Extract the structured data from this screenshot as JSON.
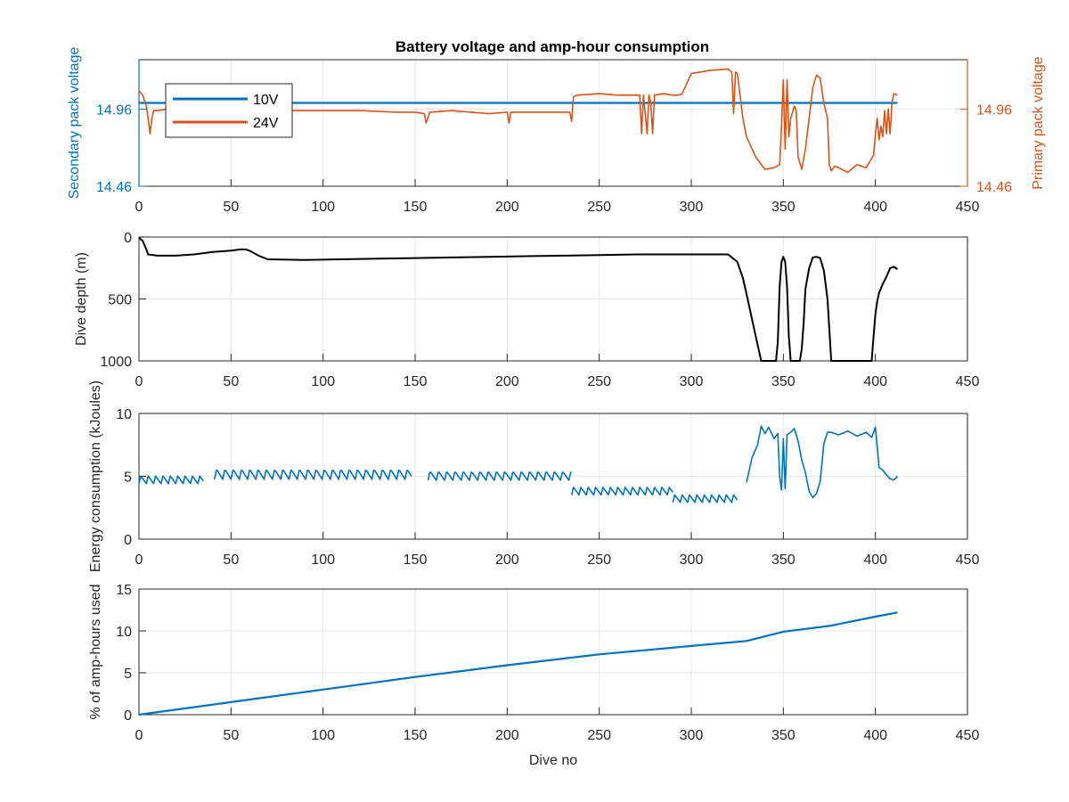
{
  "figure": {
    "title": "Battery voltage and amp-hour consumption"
  },
  "colors": {
    "blue": "#0072BD",
    "orange": "#D95319",
    "black": "#000000",
    "grid": "#e6e6e6"
  },
  "chart_data": [
    {
      "type": "line",
      "title": "Battery voltage and amp-hour consumption",
      "xlabel": "",
      "ylabel_left": "Secondary pack voltage",
      "ylabel_right": "Primary pack voltage",
      "xlim": [
        0,
        450
      ],
      "xticks": [
        "0",
        "50",
        "100",
        "150",
        "200",
        "250",
        "300",
        "350",
        "400",
        "450"
      ],
      "ylim_left": [
        14.46,
        15.28
      ],
      "ylim_right": [
        14.46,
        15.28
      ],
      "yticks_left": [
        "14.46",
        "14.96"
      ],
      "yticks_right": [
        "14.46",
        "14.96"
      ],
      "grid": true,
      "legend": {
        "position": "top-left",
        "entries": [
          "10V",
          "24V"
        ]
      },
      "series": [
        {
          "name": "10V",
          "axis": "left",
          "color": "#0072BD",
          "x": [
            0,
            412
          ],
          "y": [
            15.0,
            15.0
          ]
        },
        {
          "name": "24V",
          "axis": "right",
          "color": "#D95319",
          "x": [
            0,
            2,
            4,
            5,
            6,
            7,
            8,
            10,
            15,
            20,
            30,
            40,
            50,
            60,
            70,
            80,
            100,
            120,
            140,
            150,
            155,
            156,
            158,
            170,
            190,
            200,
            201,
            202,
            203,
            210,
            220,
            230,
            234,
            235,
            236,
            238,
            250,
            260,
            270,
            272,
            273,
            274,
            276,
            277,
            278,
            279,
            280,
            285,
            290,
            293,
            295,
            300,
            310,
            320,
            322,
            323,
            324,
            325,
            326,
            328,
            330,
            335,
            340,
            345,
            348,
            349,
            350,
            351,
            352,
            353,
            354,
            356,
            357,
            358,
            360,
            362,
            364,
            366,
            368,
            370,
            372,
            374,
            375,
            376,
            378,
            380,
            385,
            390,
            395,
            399,
            400,
            401,
            402,
            403,
            404,
            405,
            406,
            407,
            408,
            409,
            410,
            412
          ],
          "y": [
            15.08,
            15.05,
            14.98,
            14.9,
            14.8,
            14.9,
            14.95,
            14.95,
            14.96,
            14.95,
            14.95,
            14.95,
            14.95,
            14.94,
            14.95,
            14.95,
            14.95,
            14.95,
            14.94,
            14.94,
            14.93,
            14.87,
            14.94,
            14.95,
            14.93,
            14.94,
            14.87,
            14.94,
            14.94,
            14.94,
            14.94,
            14.94,
            14.94,
            14.88,
            15.04,
            15.05,
            15.06,
            15.05,
            15.05,
            15.05,
            14.8,
            15.05,
            14.8,
            15.05,
            15.0,
            14.8,
            15.05,
            15.06,
            15.05,
            15.05,
            15.06,
            15.19,
            15.21,
            15.22,
            15.2,
            14.93,
            15.2,
            15.19,
            15.1,
            14.9,
            14.78,
            14.65,
            14.57,
            14.58,
            14.6,
            14.85,
            15.15,
            14.7,
            15.15,
            14.78,
            14.9,
            14.98,
            14.95,
            14.65,
            14.57,
            14.7,
            14.9,
            15.1,
            15.18,
            15.16,
            15.0,
            14.9,
            14.6,
            14.56,
            14.59,
            14.58,
            14.55,
            14.6,
            14.58,
            14.66,
            14.8,
            14.9,
            14.76,
            14.85,
            14.78,
            14.95,
            14.8,
            14.96,
            14.8,
            15.0,
            15.06,
            15.05
          ]
        }
      ]
    },
    {
      "type": "line",
      "xlabel": "",
      "ylabel": "Dive depth (m)",
      "xlim": [
        0,
        450
      ],
      "xticks": [
        "0",
        "50",
        "100",
        "150",
        "200",
        "250",
        "300",
        "350",
        "400",
        "450"
      ],
      "ylim": [
        0,
        1000
      ],
      "y_reversed": true,
      "yticks": [
        "0",
        "500",
        "1000"
      ],
      "grid": true,
      "series": [
        {
          "color": "#000000",
          "x": [
            0,
            2,
            4,
            5,
            10,
            20,
            30,
            40,
            45,
            50,
            55,
            58,
            60,
            65,
            70,
            90,
            110,
            130,
            150,
            170,
            190,
            210,
            230,
            250,
            270,
            290,
            310,
            320,
            325,
            328,
            330,
            335,
            338,
            340,
            344,
            346,
            347,
            348,
            349,
            350,
            351,
            352,
            353,
            354,
            355,
            356,
            357,
            359,
            360,
            361,
            362,
            364,
            366,
            368,
            370,
            372,
            374,
            375,
            376,
            380,
            390,
            398,
            399,
            400,
            401,
            402,
            404,
            406,
            408,
            410,
            412
          ],
          "y": [
            5,
            30,
            100,
            140,
            150,
            150,
            140,
            120,
            115,
            110,
            100,
            100,
            110,
            150,
            180,
            185,
            180,
            175,
            170,
            165,
            160,
            155,
            150,
            145,
            140,
            140,
            140,
            140,
            200,
            330,
            460,
            800,
            1000,
            1000,
            1000,
            1000,
            850,
            400,
            200,
            160,
            200,
            400,
            800,
            1000,
            1000,
            1000,
            1000,
            1000,
            900,
            700,
            420,
            250,
            165,
            160,
            170,
            270,
            500,
            750,
            1000,
            1000,
            1000,
            1000,
            800,
            620,
            520,
            450,
            380,
            320,
            250,
            240,
            260
          ]
        }
      ]
    },
    {
      "type": "line",
      "xlabel": "",
      "ylabel": "Energy consumption (kJoules)",
      "xlim": [
        0,
        450
      ],
      "xticks": [
        "0",
        "50",
        "100",
        "150",
        "200",
        "250",
        "300",
        "350",
        "400",
        "450"
      ],
      "ylim": [
        0,
        10
      ],
      "yticks": [
        "0",
        "5",
        "10"
      ],
      "grid": true,
      "series": [
        {
          "color": "#0072BD",
          "gaps": [
            [
              35,
              41
            ],
            [
              148,
              157
            ],
            [
              325,
              330
            ]
          ],
          "segments": [
            {
              "x0": 0,
              "x1": 35,
              "base": 4.6,
              "period": 4,
              "amp": 0.6
            },
            {
              "x0": 41,
              "x1": 148,
              "base": 5.0,
              "period": 4.5,
              "amp": 0.8
            },
            {
              "x0": 157,
              "x1": 235,
              "base": 4.9,
              "period": 4.5,
              "amp": 0.7
            },
            {
              "x0": 235,
              "x1": 290,
              "base": 3.7,
              "period": 4,
              "amp": 0.6
            },
            {
              "x0": 290,
              "x1": 325,
              "base": 3.1,
              "period": 4,
              "amp": 0.6
            }
          ],
          "x_tail": [
            330,
            333,
            336,
            338,
            340,
            342,
            345,
            347,
            348,
            349,
            350,
            351,
            352,
            354,
            356,
            358,
            360,
            362,
            364,
            366,
            368,
            370,
            372,
            374,
            376,
            380,
            385,
            390,
            395,
            398,
            400,
            402,
            404,
            406,
            408,
            410,
            412
          ],
          "y_tail": [
            4.5,
            6.5,
            7.5,
            9.0,
            8.4,
            8.9,
            8.0,
            8.4,
            5.0,
            3.9,
            8.0,
            4.0,
            8.3,
            8.5,
            8.8,
            7.8,
            6.3,
            5.3,
            3.8,
            3.3,
            3.6,
            4.6,
            7.6,
            8.5,
            8.5,
            8.3,
            8.6,
            8.2,
            8.5,
            8.1,
            8.9,
            5.7,
            5.5,
            5.1,
            4.8,
            4.7,
            5.0
          ]
        }
      ]
    },
    {
      "type": "line",
      "xlabel": "Dive no",
      "ylabel": "% of amp-hours used",
      "xlim": [
        0,
        450
      ],
      "xticks": [
        "0",
        "50",
        "100",
        "150",
        "200",
        "250",
        "300",
        "350",
        "400",
        "450"
      ],
      "ylim": [
        0,
        15
      ],
      "yticks": [
        "0",
        "5",
        "10",
        "15"
      ],
      "grid": true,
      "series": [
        {
          "color": "#0072BD",
          "x": [
            0,
            50,
            100,
            150,
            200,
            250,
            300,
            330,
            350,
            375,
            400,
            412
          ],
          "y": [
            0,
            1.5,
            3.0,
            4.5,
            5.9,
            7.2,
            8.2,
            8.8,
            9.9,
            10.6,
            11.7,
            12.2
          ]
        }
      ]
    }
  ]
}
